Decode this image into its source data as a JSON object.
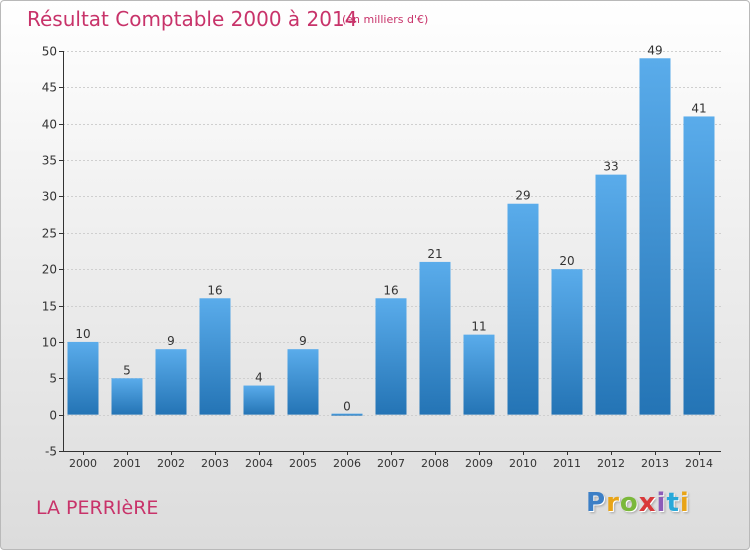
{
  "header": {
    "title": "Résultat Comptable 2000 à 2014",
    "subtitle": "(en milliers d'€)"
  },
  "footer": {
    "place": "LA PERRIèRE",
    "logo_text": "Proxiti",
    "logo_colors": [
      "#3c7fc6",
      "#e8a417",
      "#7bb83a",
      "#d9393a",
      "#8c5cb8",
      "#29a8d8",
      "#e8a417"
    ]
  },
  "colors": {
    "bar_top": "#5aaceb",
    "bar_bottom": "#2474b5",
    "grid": "#cfcfcf",
    "axis": "#333333",
    "title": "#c8336a"
  },
  "chart_data": {
    "type": "bar",
    "categories": [
      "2000",
      "2001",
      "2002",
      "2003",
      "2004",
      "2005",
      "2006",
      "2007",
      "2008",
      "2009",
      "2010",
      "2011",
      "2012",
      "2013",
      "2014"
    ],
    "values": [
      10,
      5,
      9,
      16,
      4,
      9,
      0,
      16,
      21,
      11,
      29,
      20,
      33,
      49,
      41
    ],
    "ylim": [
      -5,
      50
    ],
    "yticks": [
      -5,
      0,
      5,
      10,
      15,
      20,
      25,
      30,
      35,
      40,
      45,
      50
    ],
    "grid": "horizontal dashed",
    "legend": "none"
  }
}
